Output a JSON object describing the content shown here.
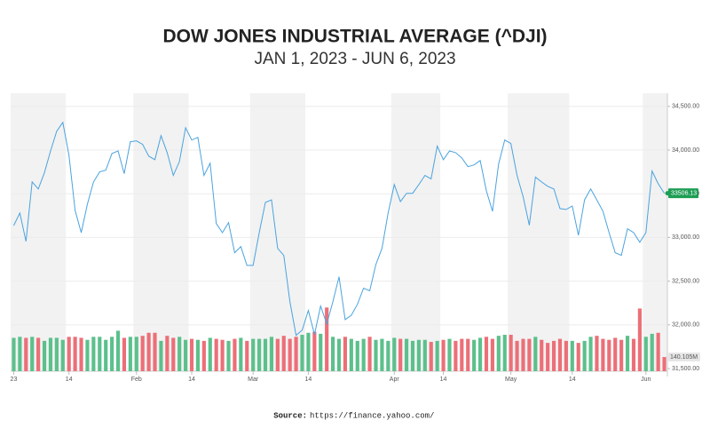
{
  "chart_data": {
    "type": "line",
    "title": "DOW JONES INDUSTRIAL AVERAGE (^DJI)",
    "subtitle": "JAN 1, 2023 - JUN 6, 2023",
    "categories": [
      "23",
      null,
      null,
      null,
      null,
      null,
      null,
      null,
      null,
      "14",
      null,
      null,
      null,
      null,
      null,
      null,
      null,
      null,
      null,
      null,
      "Feb",
      null,
      null,
      null,
      null,
      null,
      null,
      null,
      null,
      "14",
      null,
      null,
      null,
      null,
      null,
      null,
      null,
      null,
      null,
      "Mar",
      null,
      null,
      null,
      null,
      null,
      null,
      null,
      null,
      "14",
      null,
      null,
      null,
      null,
      null,
      null,
      null,
      null,
      null,
      null,
      null,
      null,
      null,
      "Apr",
      null,
      null,
      null,
      null,
      null,
      null,
      null,
      "14",
      null,
      null,
      null,
      null,
      null,
      null,
      null,
      null,
      null,
      null,
      "May",
      null,
      null,
      null,
      null,
      null,
      null,
      null,
      null,
      null,
      "14",
      null,
      null,
      null,
      null,
      null,
      null,
      null,
      null,
      null,
      null,
      null,
      "Jun",
      null,
      null,
      null
    ],
    "series": [
      {
        "color": "#4aa3df",
        "values": [
          33136,
          33280,
          32955,
          33636,
          33555,
          33740,
          33990,
          34215,
          34317,
          33940,
          33310,
          33055,
          33380,
          33635,
          33750,
          33770,
          33960,
          33990,
          33730,
          34095,
          34105,
          34065,
          33930,
          33890,
          34165,
          33970,
          33710,
          33870,
          34255,
          34115,
          34145,
          33710,
          33850,
          33160,
          33055,
          33170,
          32825,
          32895,
          32680,
          32680,
          33055,
          33400,
          33430,
          32875,
          32795,
          32265,
          31880,
          31940,
          32165,
          31890,
          32215,
          32010,
          32265,
          32550,
          32060,
          32110,
          32235,
          32420,
          32390,
          32690,
          32875,
          33280,
          33605,
          33410,
          33505,
          33505,
          33605,
          33710,
          33670,
          34045,
          33890,
          33990,
          33970,
          33910,
          33810,
          33830,
          33880,
          33535,
          33300,
          33840,
          34115,
          34075,
          33710,
          33465,
          33140,
          33690,
          33635,
          33585,
          33555,
          33330,
          33320,
          33360,
          33025,
          33430,
          33555,
          33430,
          33300,
          33055,
          32825,
          32795,
          33100,
          33055,
          32945,
          33055,
          33760,
          33615,
          33506.13
        ],
        "marker_color": "#1e9e55"
      },
      {
        "type": "bar",
        "axis": "y2",
        "up_color": "#5cc08c",
        "down_color": "#ec6f78",
        "marker_color": "#e6e6e6",
        "values": [
          330,
          340,
          330,
          340,
          330,
          300,
          330,
          330,
          310,
          340,
          340,
          330,
          310,
          340,
          340,
          310,
          340,
          400,
          330,
          340,
          340,
          350,
          380,
          380,
          300,
          350,
          330,
          340,
          310,
          320,
          310,
          300,
          330,
          320,
          310,
          300,
          320,
          330,
          300,
          320,
          320,
          320,
          340,
          320,
          350,
          320,
          340,
          360,
          380,
          390,
          370,
          630,
          340,
          320,
          340,
          320,
          300,
          320,
          340,
          310,
          320,
          300,
          330,
          320,
          320,
          300,
          310,
          310,
          290,
          300,
          310,
          320,
          300,
          320,
          320,
          310,
          330,
          340,
          320,
          350,
          360,
          360,
          300,
          320,
          320,
          340,
          310,
          280,
          300,
          320,
          300,
          300,
          280,
          300,
          340,
          350,
          320,
          310,
          330,
          310,
          350,
          320,
          620,
          340,
          370,
          380,
          140.105
        ],
        "value_labels": [
          null,
          null,
          null,
          null,
          null,
          null,
          null,
          null,
          null,
          null,
          null,
          null,
          null,
          null,
          null,
          null,
          null,
          null,
          null,
          null,
          null,
          null,
          null,
          null,
          null,
          null,
          null,
          null,
          null,
          null,
          null,
          null,
          null,
          null,
          null,
          null,
          null,
          null,
          null,
          null,
          null,
          null,
          null,
          null,
          null,
          null,
          null,
          null,
          null,
          null,
          null,
          null,
          null,
          null,
          null,
          null,
          null,
          null,
          null,
          null,
          null,
          null,
          null,
          null,
          null,
          null,
          null,
          null,
          null,
          null,
          null,
          null,
          null,
          null,
          null,
          null,
          null,
          null,
          null,
          null,
          null,
          null,
          null,
          null,
          null,
          null,
          null,
          null,
          null,
          null,
          null,
          null,
          null,
          null,
          null,
          null,
          null,
          null,
          null,
          null,
          null,
          null,
          null,
          null,
          null,
          null,
          "140.105M"
        ]
      }
    ],
    "ylim": [
      31470,
      34650
    ],
    "yticks": [
      {
        "value": 31500,
        "label": "31,500.00"
      },
      {
        "value": 32000,
        "label": "32,000.00"
      },
      {
        "value": 32500,
        "label": "32,500.00"
      },
      {
        "value": 33000,
        "label": "33,000.00"
      },
      {
        "value": 33500,
        "label": "33,500.00"
      },
      {
        "value": 34000,
        "label": "34,000.00"
      },
      {
        "value": 34500,
        "label": "34,500.00"
      }
    ],
    "y2lim": [
      0,
      2750
    ],
    "grid": true,
    "source": {
      "label": "Source:",
      "url": "https://finance.yahoo.com/"
    }
  }
}
